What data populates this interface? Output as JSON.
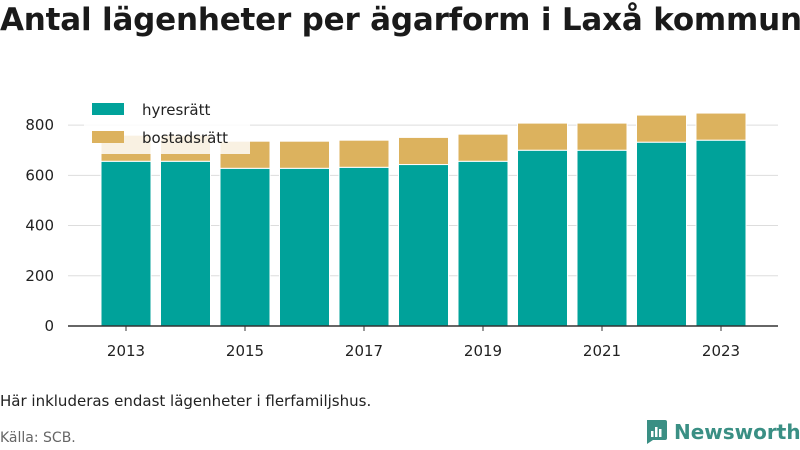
{
  "title": "Antal lägenheter per ägarform i Laxå kommun",
  "note": "Här inkluderas endast lägenheter i flerfamiljshus.",
  "source": "Källa: SCB.",
  "brand": "Newsworthy",
  "colors": {
    "hyresratt": "#00a29a",
    "bostadsratt": "#dcb25e",
    "brand": "#3a8f84",
    "grid": "#dddddd",
    "axis": "#333333"
  },
  "chart_data": {
    "type": "bar",
    "stacked": true,
    "categories": [
      "2013",
      "2014",
      "2015",
      "2016",
      "2017",
      "2018",
      "2019",
      "2020",
      "2021",
      "2022",
      "2023"
    ],
    "xtick_labels": [
      "2013",
      "",
      "2015",
      "",
      "2017",
      "",
      "2019",
      "",
      "2021",
      "",
      "2023"
    ],
    "series": [
      {
        "name": "hyresrätt",
        "values": [
          656,
          656,
          628,
          628,
          632,
          643,
          656,
          700,
          700,
          732,
          740
        ]
      },
      {
        "name": "bostadsrätt",
        "values": [
          104,
          104,
          108,
          108,
          108,
          108,
          108,
          108,
          108,
          108,
          108
        ]
      }
    ],
    "ylim": [
      0,
      900
    ],
    "yticks": [
      0,
      200,
      400,
      600,
      800
    ],
    "grid": true,
    "legend": "top-left"
  }
}
